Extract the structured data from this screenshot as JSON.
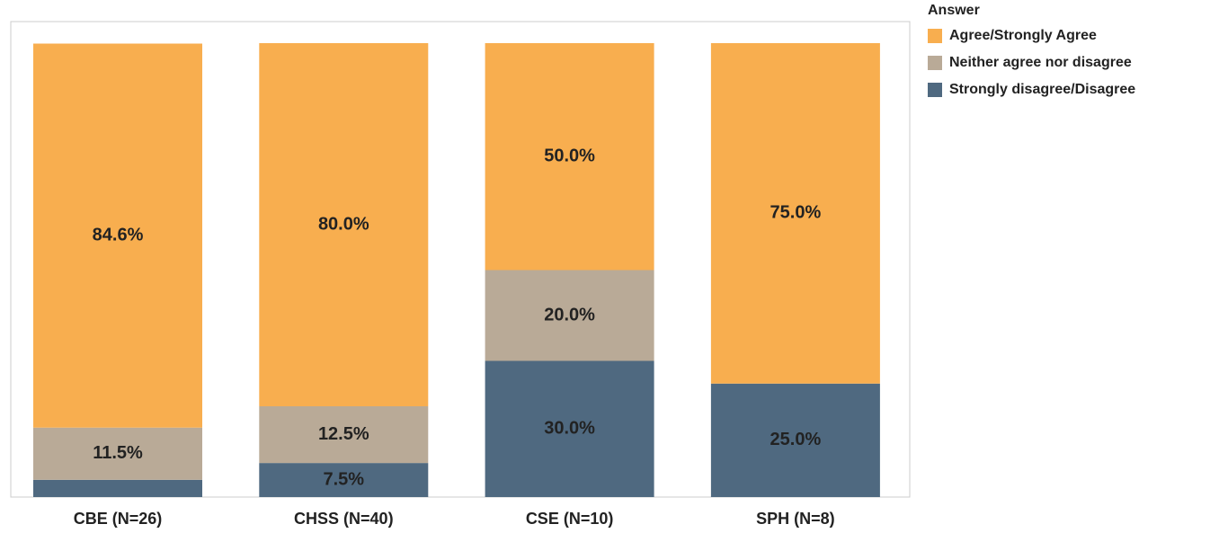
{
  "chart_data": {
    "type": "stacked_bar",
    "categories": [
      "CBE (N=26)",
      "CHSS (N=40)",
      "CSE (N=10)",
      "SPH (N=8)"
    ],
    "legend_title": "Answer",
    "series": [
      {
        "name": "Strongly disagree/Disagree",
        "color": "#4f6980",
        "values": [
          3.8,
          7.5,
          30.0,
          25.0
        ],
        "value_labels": [
          null,
          "7.5%",
          "30.0%",
          "25.0%"
        ]
      },
      {
        "name": "Neither agree nor disagree",
        "color": "#b9aa97",
        "values": [
          11.5,
          12.5,
          20.0,
          0
        ],
        "value_labels": [
          "11.5%",
          "12.5%",
          "20.0%",
          null
        ]
      },
      {
        "name": "Agree/Strongly Agree",
        "color": "#f8ae4f",
        "values": [
          84.6,
          80.0,
          50.0,
          75.0
        ],
        "value_labels": [
          "84.6%",
          "80.0%",
          "50.0%",
          "75.0%"
        ]
      }
    ],
    "ylim": [
      0,
      100
    ],
    "legend": "right"
  }
}
